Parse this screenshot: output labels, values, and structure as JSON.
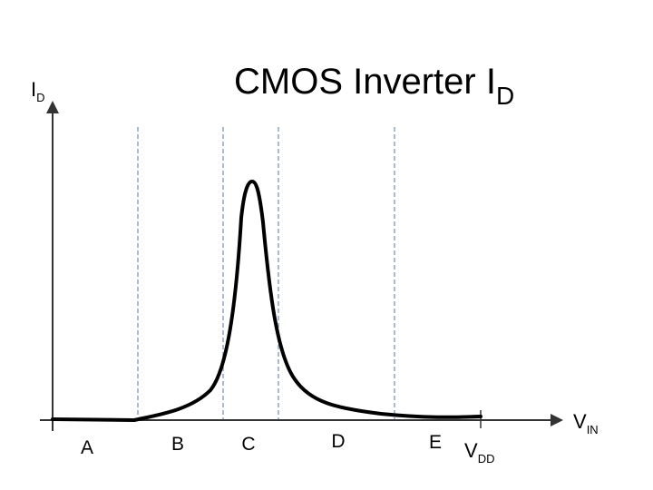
{
  "title": {
    "main": "CMOS Inverter I",
    "sub": "D"
  },
  "y_axis": {
    "main": "I",
    "sub": "D"
  },
  "x_axis": {
    "main": "V",
    "sub": "IN"
  },
  "vdd_label": {
    "main": "V",
    "sub": "DD"
  },
  "regions": [
    "A",
    "B",
    "C",
    "D",
    "E"
  ],
  "colors": {
    "curve": "#000000",
    "axes": "#333333",
    "dividers": "#8fa3c4"
  }
}
